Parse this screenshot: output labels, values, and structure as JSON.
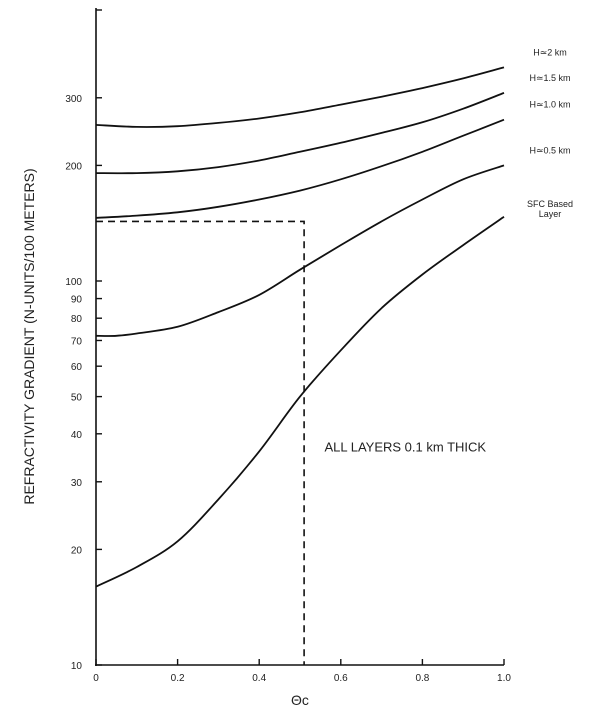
{
  "chart_data": {
    "type": "line",
    "title": "",
    "xlabel": "Θc",
    "ylabel": "REFRACTIVITY GRADIENT (N-UNITS/100 METERS)",
    "yscale": "log",
    "xlim": [
      0,
      1.0
    ],
    "ylim": [
      10,
      380
    ],
    "x_ticks": [
      {
        "value": 0,
        "label": "0"
      },
      {
        "value": 0.2,
        "label": "0.2"
      },
      {
        "value": 0.4,
        "label": "0.4"
      },
      {
        "value": 0.6,
        "label": "0.6"
      },
      {
        "value": 0.8,
        "label": "0.8"
      },
      {
        "value": 1.0,
        "label": "1.0"
      }
    ],
    "y_ticks": [
      {
        "value": 10,
        "label": "10"
      },
      {
        "value": 20,
        "label": "20"
      },
      {
        "value": 30,
        "label": "30"
      },
      {
        "value": 40,
        "label": "40"
      },
      {
        "value": 50,
        "label": "50"
      },
      {
        "value": 60,
        "label": "60"
      },
      {
        "value": 70,
        "label": "70"
      },
      {
        "value": 80,
        "label": "80"
      },
      {
        "value": 90,
        "label": "90"
      },
      {
        "value": 100,
        "label": "100"
      },
      {
        "value": 200,
        "label": "200"
      },
      {
        "value": 300,
        "label": "300"
      }
    ],
    "series": [
      {
        "name": "H≃2 km",
        "x": [
          0,
          0.1,
          0.2,
          0.3,
          0.4,
          0.5,
          0.6,
          0.7,
          0.8,
          0.9,
          1.0
        ],
        "y": [
          255,
          252,
          253,
          258,
          265,
          275,
          288,
          302,
          318,
          337,
          360
        ]
      },
      {
        "name": "H≃1.5 km",
        "x": [
          0,
          0.1,
          0.2,
          0.3,
          0.4,
          0.5,
          0.6,
          0.7,
          0.8,
          0.9,
          1.0
        ],
        "y": [
          191,
          191,
          193,
          198,
          206,
          217,
          229,
          243,
          259,
          281,
          309
        ]
      },
      {
        "name": "H≃1.0 km",
        "x": [
          0,
          0.1,
          0.2,
          0.3,
          0.4,
          0.5,
          0.6,
          0.7,
          0.8,
          0.9,
          1.0
        ],
        "y": [
          146,
          148,
          151,
          156,
          163,
          172,
          184,
          199,
          217,
          239,
          263
        ]
      },
      {
        "name": "H≃0.5 km",
        "x": [
          0,
          0.05,
          0.1,
          0.2,
          0.3,
          0.4,
          0.5,
          0.6,
          0.7,
          0.8,
          0.9,
          1.0
        ],
        "y": [
          72,
          72,
          73,
          76,
          83,
          92,
          107,
          124,
          143,
          163,
          184,
          200
        ]
      },
      {
        "name": "SFC Based Layer",
        "x": [
          0,
          0.1,
          0.2,
          0.3,
          0.4,
          0.5,
          0.6,
          0.7,
          0.8,
          0.9,
          1.0
        ],
        "y": [
          16,
          18,
          21,
          27,
          36,
          50,
          66,
          85,
          104,
          124,
          147
        ]
      }
    ],
    "guide_lines": {
      "x": 0.51,
      "y": 143
    },
    "annotations": [
      {
        "text": "ALL LAYERS 0.1 km THICK",
        "x": 0.56,
        "y": 36
      }
    ],
    "grid": false,
    "legend": "inline labels at right end of curves"
  }
}
